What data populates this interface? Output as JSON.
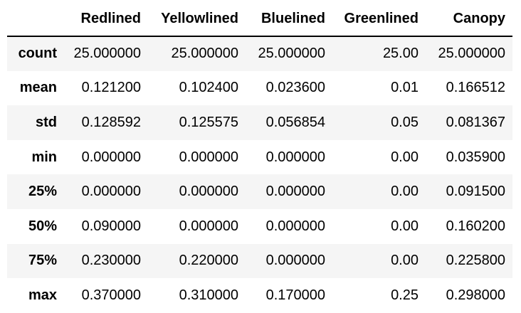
{
  "table": {
    "index_header": "",
    "columns": [
      "Redlined",
      "Yellowlined",
      "Bluelined",
      "Greenlined",
      "Canopy"
    ],
    "rows": [
      {
        "label": "count",
        "values": [
          "25.000000",
          "25.000000",
          "25.000000",
          "25.00",
          "25.000000"
        ]
      },
      {
        "label": "mean",
        "values": [
          "0.121200",
          "0.102400",
          "0.023600",
          "0.01",
          "0.166512"
        ]
      },
      {
        "label": "std",
        "values": [
          "0.128592",
          "0.125575",
          "0.056854",
          "0.05",
          "0.081367"
        ]
      },
      {
        "label": "min",
        "values": [
          "0.000000",
          "0.000000",
          "0.000000",
          "0.00",
          "0.035900"
        ]
      },
      {
        "label": "25%",
        "values": [
          "0.000000",
          "0.000000",
          "0.000000",
          "0.00",
          "0.091500"
        ]
      },
      {
        "label": "50%",
        "values": [
          "0.090000",
          "0.000000",
          "0.000000",
          "0.00",
          "0.160200"
        ]
      },
      {
        "label": "75%",
        "values": [
          "0.230000",
          "0.220000",
          "0.000000",
          "0.00",
          "0.225800"
        ]
      },
      {
        "label": "max",
        "values": [
          "0.370000",
          "0.310000",
          "0.170000",
          "0.25",
          "0.298000"
        ]
      }
    ]
  }
}
